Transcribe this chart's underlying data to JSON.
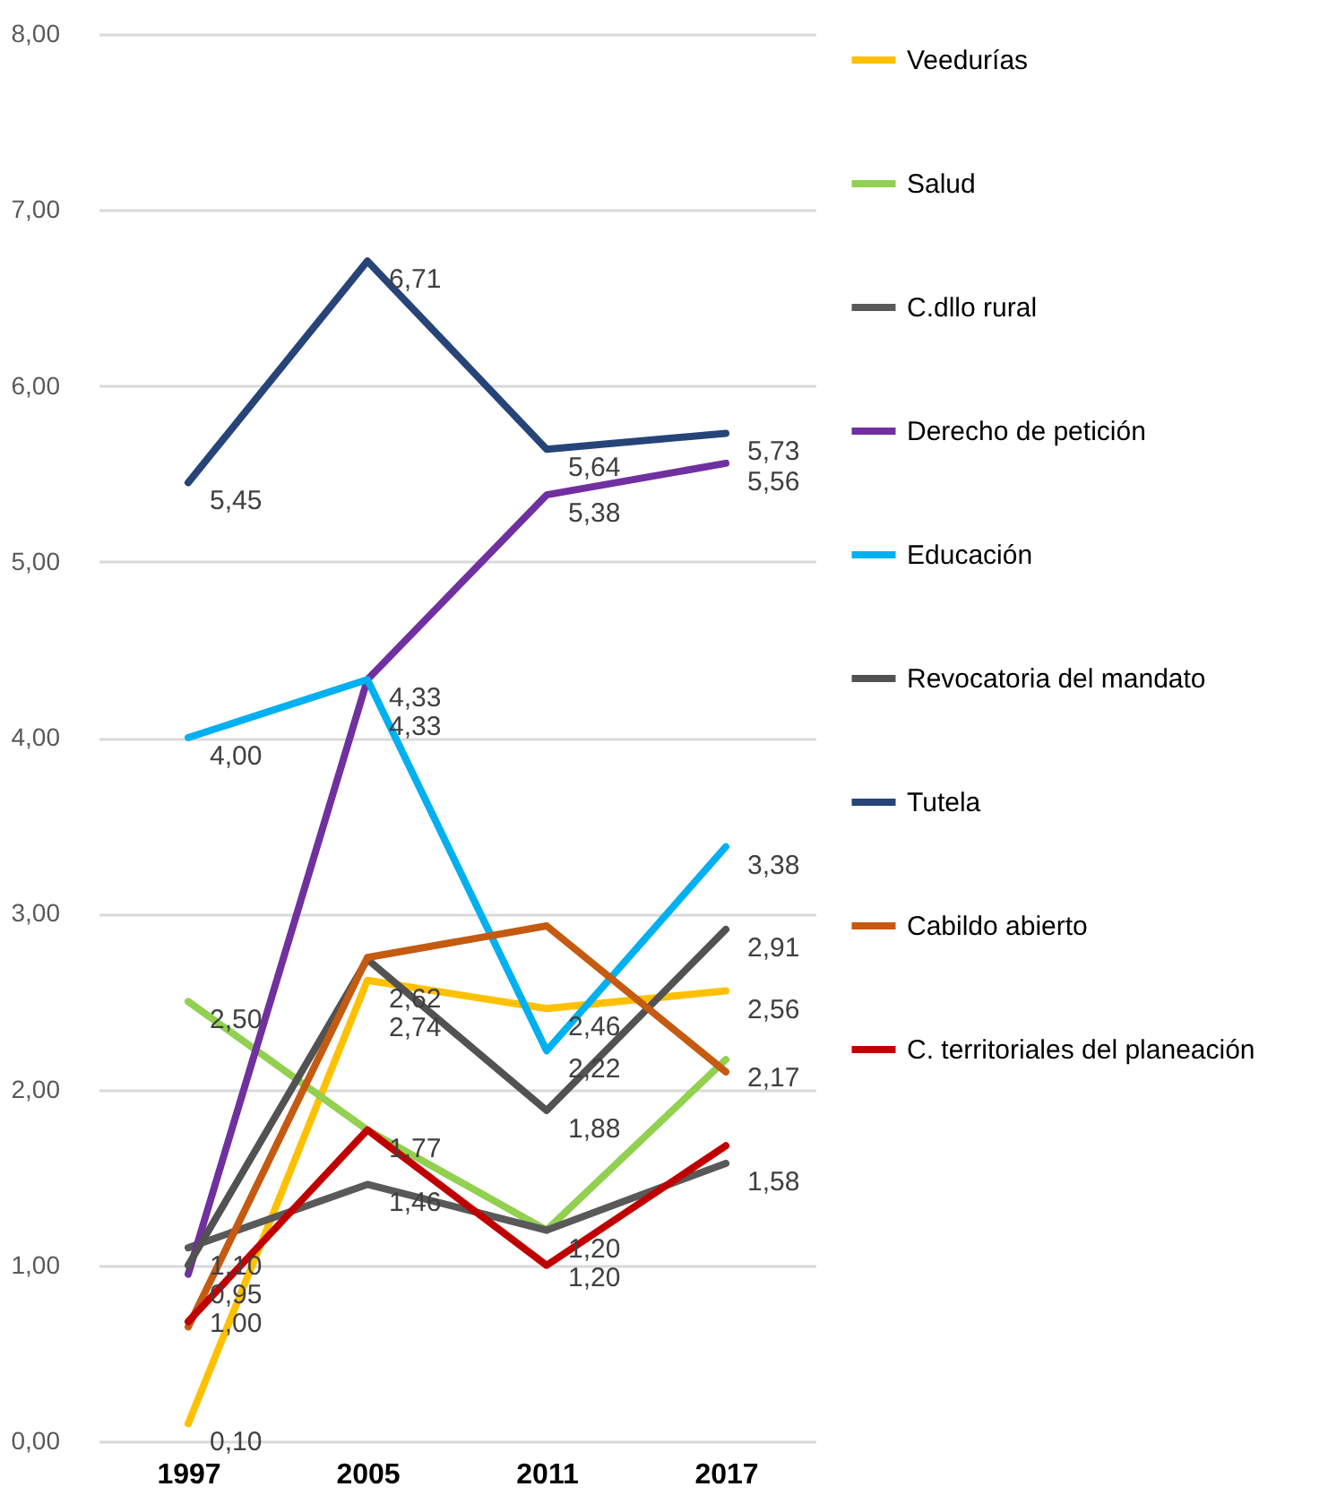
{
  "chart_data": {
    "type": "line",
    "categories": [
      "1997",
      "2005",
      "2011",
      "2017"
    ],
    "ylim": [
      0,
      8
    ],
    "yticks": [
      {
        "value": 0,
        "label": "0,00"
      },
      {
        "value": 1,
        "label": "1,00"
      },
      {
        "value": 2,
        "label": "2,00"
      },
      {
        "value": 3,
        "label": "3,00"
      },
      {
        "value": 4,
        "label": "4,00"
      },
      {
        "value": 5,
        "label": "5,00"
      },
      {
        "value": 6,
        "label": "6,00"
      },
      {
        "value": 7,
        "label": "7,00"
      },
      {
        "value": 8,
        "label": "8,00"
      }
    ],
    "grid": "y",
    "legend": "right",
    "line_style": "solid",
    "marker": "none",
    "series": [
      {
        "name": "Veedurías",
        "color": "#ffc000",
        "values": [
          0.1,
          2.62,
          2.46,
          2.56
        ],
        "value_labels": [
          "0,10",
          "2,62",
          "2,46",
          "2,56"
        ]
      },
      {
        "name": "Salud",
        "color": "#92d050",
        "values": [
          2.5,
          1.77,
          1.2,
          2.17
        ],
        "value_labels": [
          "2,50",
          "1,77",
          "1,20",
          "2,17"
        ]
      },
      {
        "name": "C.dllo rural",
        "color": "#595959",
        "values": [
          1.1,
          1.46,
          1.2,
          1.58
        ],
        "value_labels": [
          "1,10",
          "1,46",
          "1,20",
          "1,58"
        ]
      },
      {
        "name": "Derecho de petición",
        "color": "#7030a0",
        "values": [
          0.95,
          4.33,
          5.38,
          5.56
        ],
        "value_labels": [
          "0,95",
          "4,33",
          "5,38",
          "5,56"
        ]
      },
      {
        "name": "Educación",
        "color": "#00b0f0",
        "values": [
          4.0,
          4.33,
          2.22,
          3.38
        ],
        "value_labels": [
          "4,00",
          "4,33",
          "2,22",
          "3,38"
        ]
      },
      {
        "name": "Revocatoria del mandato",
        "color": "#525252",
        "values": [
          1.0,
          2.74,
          1.88,
          2.91
        ],
        "value_labels": [
          "1,00",
          "2,74",
          "1,88",
          "2,91"
        ]
      },
      {
        "name": "Tutela",
        "color": "#264478",
        "values": [
          5.45,
          6.71,
          5.64,
          5.73
        ],
        "value_labels": [
          "5,45",
          "6,71",
          "5,64",
          "5,73"
        ]
      },
      {
        "name": "Cabildo abierto",
        "color": "#c55a11",
        "values": [
          0.65,
          2.75,
          2.93,
          2.1
        ]
      },
      {
        "name": "C. territoriales del planeación",
        "color": "#c00000",
        "values": [
          0.68,
          1.77,
          1.0,
          1.68
        ]
      }
    ]
  }
}
